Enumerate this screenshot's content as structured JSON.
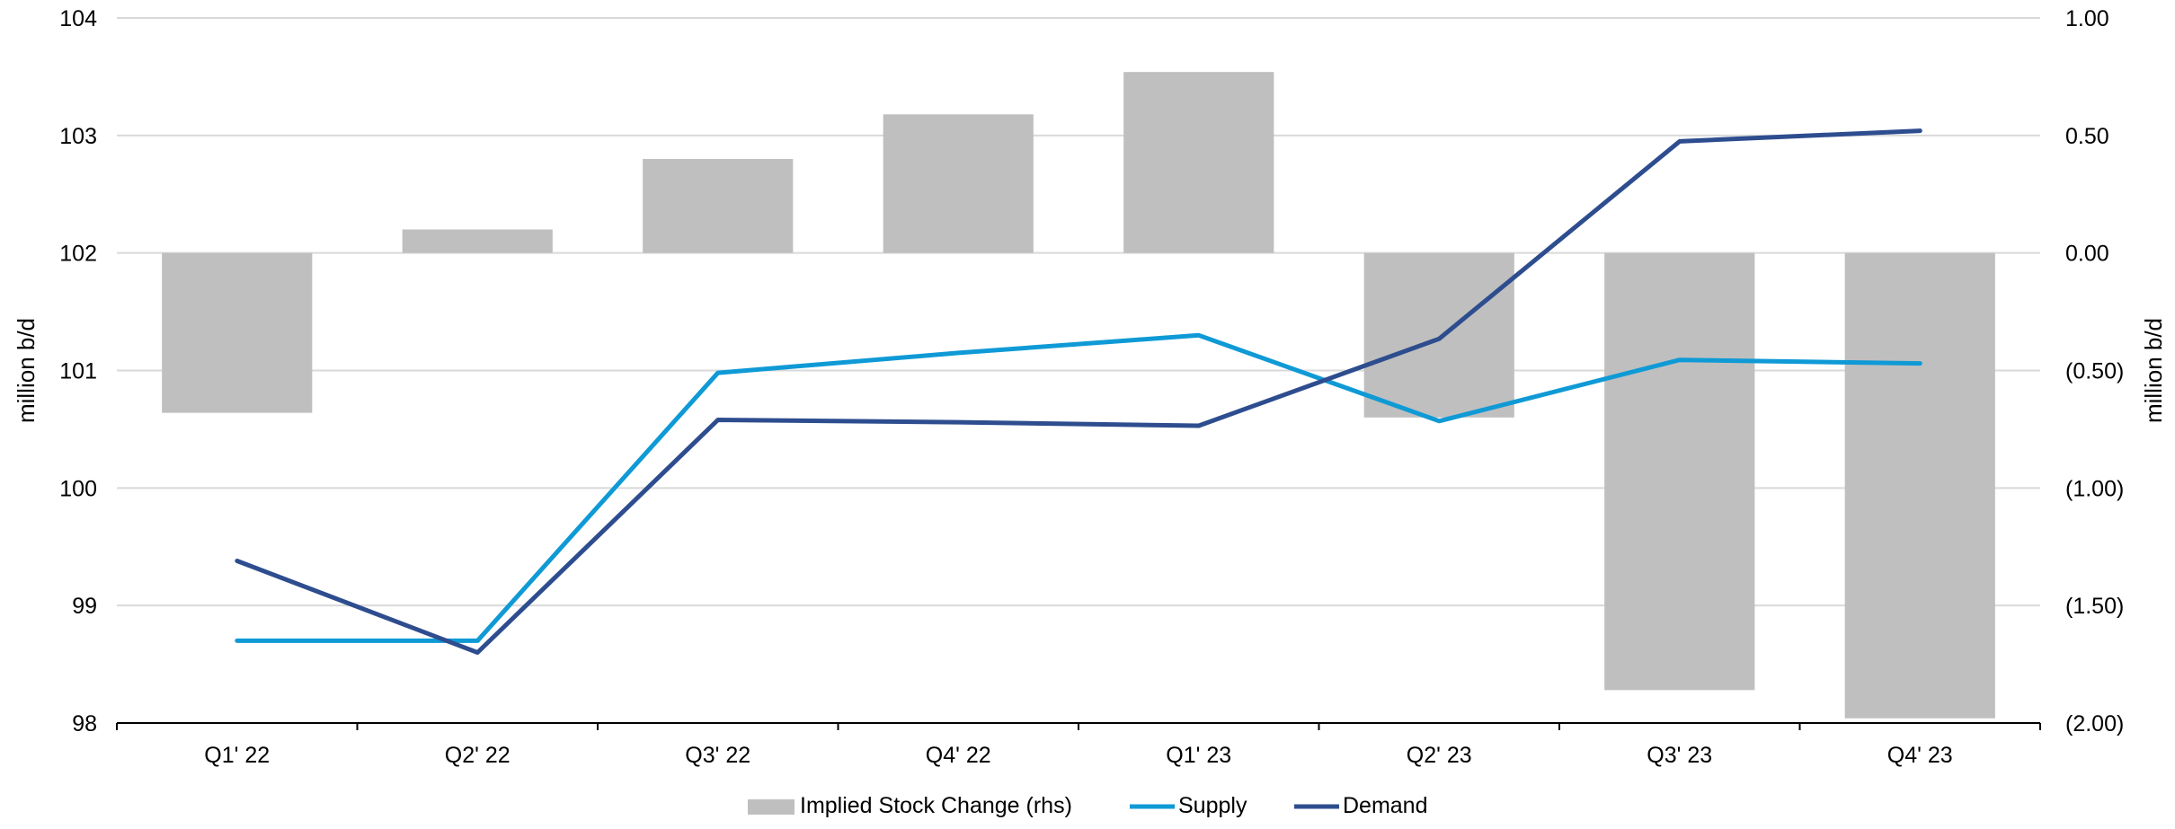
{
  "chart_data": {
    "type": "bar+line",
    "categories": [
      "Q1' 22",
      "Q2' 22",
      "Q3' 22",
      "Q4' 22",
      "Q1' 23",
      "Q2' 23",
      "Q3' 23",
      "Q4' 23"
    ],
    "bars": {
      "name": "Implied Stock Change (rhs)",
      "axis": "right",
      "color": "#bfbfbf",
      "values": [
        -0.68,
        0.1,
        0.4,
        0.59,
        0.77,
        -0.7,
        -1.86,
        -1.98
      ]
    },
    "series": [
      {
        "name": "Supply",
        "axis": "left",
        "color": "#0f9ad6",
        "values": [
          98.7,
          98.7,
          100.98,
          101.15,
          101.3,
          100.57,
          101.09,
          101.06
        ]
      },
      {
        "name": "Demand",
        "axis": "left",
        "color": "#2e4d8f",
        "values": [
          99.38,
          98.6,
          100.58,
          100.56,
          100.53,
          101.27,
          102.95,
          103.04
        ]
      }
    ],
    "left_axis": {
      "label": "million b/d",
      "ylim": [
        98,
        104
      ],
      "ticks": [
        98,
        99,
        100,
        101,
        102,
        103,
        104
      ],
      "tick_labels": [
        "98",
        "99",
        "100",
        "101",
        "102",
        "103",
        "104"
      ]
    },
    "right_axis": {
      "label": "million b/d",
      "ylim": [
        -2,
        1
      ],
      "ticks": [
        -2,
        -1.5,
        -1,
        -0.5,
        0,
        0.5,
        1
      ],
      "tick_labels": [
        "(2.00)",
        "(1.50)",
        "(1.00)",
        "(0.50)",
        "0.00",
        "0.50",
        "1.00"
      ]
    },
    "grid": true,
    "legend_position": "bottom"
  }
}
